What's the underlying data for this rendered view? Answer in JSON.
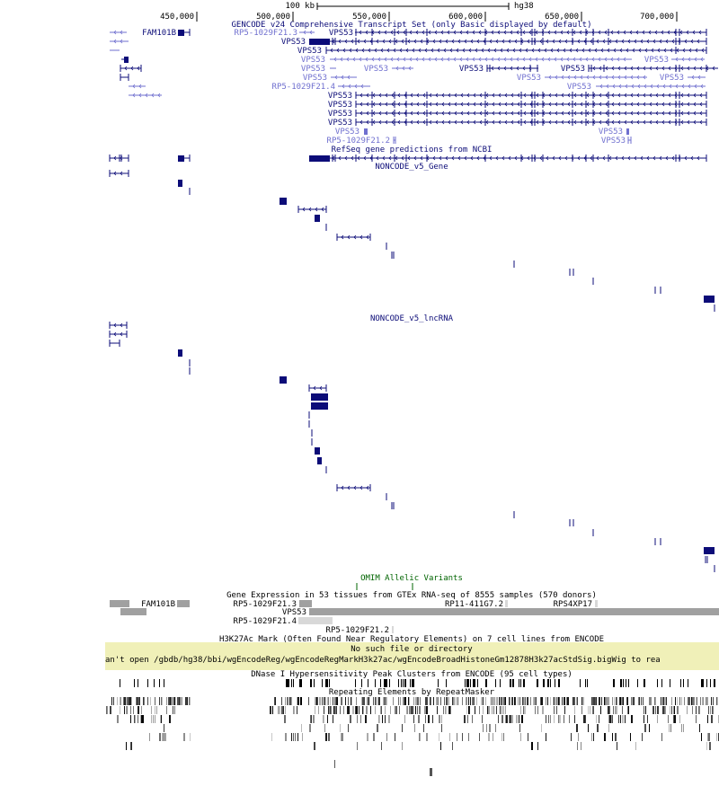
{
  "assembly": "hg38",
  "scale_bar": {
    "label": "100 kb"
  },
  "ruler": {
    "ticks": [
      "450,000",
      "500,000",
      "550,000",
      "600,000",
      "650,000",
      "700,000"
    ]
  },
  "colors": {
    "gene_dark": "#0c0c78",
    "gene_light": "#6f6fcf",
    "omim": "#006400",
    "error_bg": "#f0f0b8",
    "gtex_box": "#a0a0a0"
  },
  "tracks": {
    "gencode": {
      "title": "GENCODE v24 Comprehensive Transcript Set (only Basic displayed by default)",
      "labels": [
        "FAM101B",
        "RP5-1029F21.3",
        "VPS53",
        "VPS53",
        "VPS53",
        "VPS53",
        "VPS53",
        "VPS53",
        "VPS53",
        "VPS53",
        "VPS53",
        "VPS53",
        "VPS53",
        "VPS53",
        "RP5-1029F21.4",
        "VPS53",
        "VPS53",
        "VPS53",
        "VPS53",
        "VPS53",
        "VPS53",
        "VPS53",
        "RP5-1029F21.2",
        "VPS53"
      ]
    },
    "refseq": {
      "title": "RefSeq gene predictions from NCBI"
    },
    "noncode_gene": {
      "title": "NONCODE_v5_Gene"
    },
    "noncode_lncrna": {
      "title": "NONCODE_v5_lncRNA"
    },
    "omim": {
      "title": "OMIM Allelic Variants"
    },
    "gtex": {
      "title": "Gene Expression in 53 tissues from GTEx RNA-seq of 8555 samples (570 donors)",
      "labels": [
        "FAM101B",
        "RP5-1029F21.3",
        "RP11-411G7.2",
        "RPS4XP17",
        "VPS53",
        "RP5-1029F21.4",
        "RP5-1029F21.2"
      ]
    },
    "h3k27ac": {
      "title": "H3K27Ac Mark (Often Found Near Regulatory Elements) on 7 cell lines from ENCODE",
      "error_title": "No such file or directory",
      "error_detail": "an't open /gbdb/hg38/bbi/wgEncodeReg/wgEncodeRegMarkH3k27ac/wgEncodeBroadHistoneGm12878H3k27acStdSig.bigWig to rea"
    },
    "dnase": {
      "title": "DNase I Hypersensitivity Peak Clusters from ENCODE (95 cell types)"
    },
    "rmsk": {
      "title": "Repeating Elements by RepeatMasker"
    }
  }
}
